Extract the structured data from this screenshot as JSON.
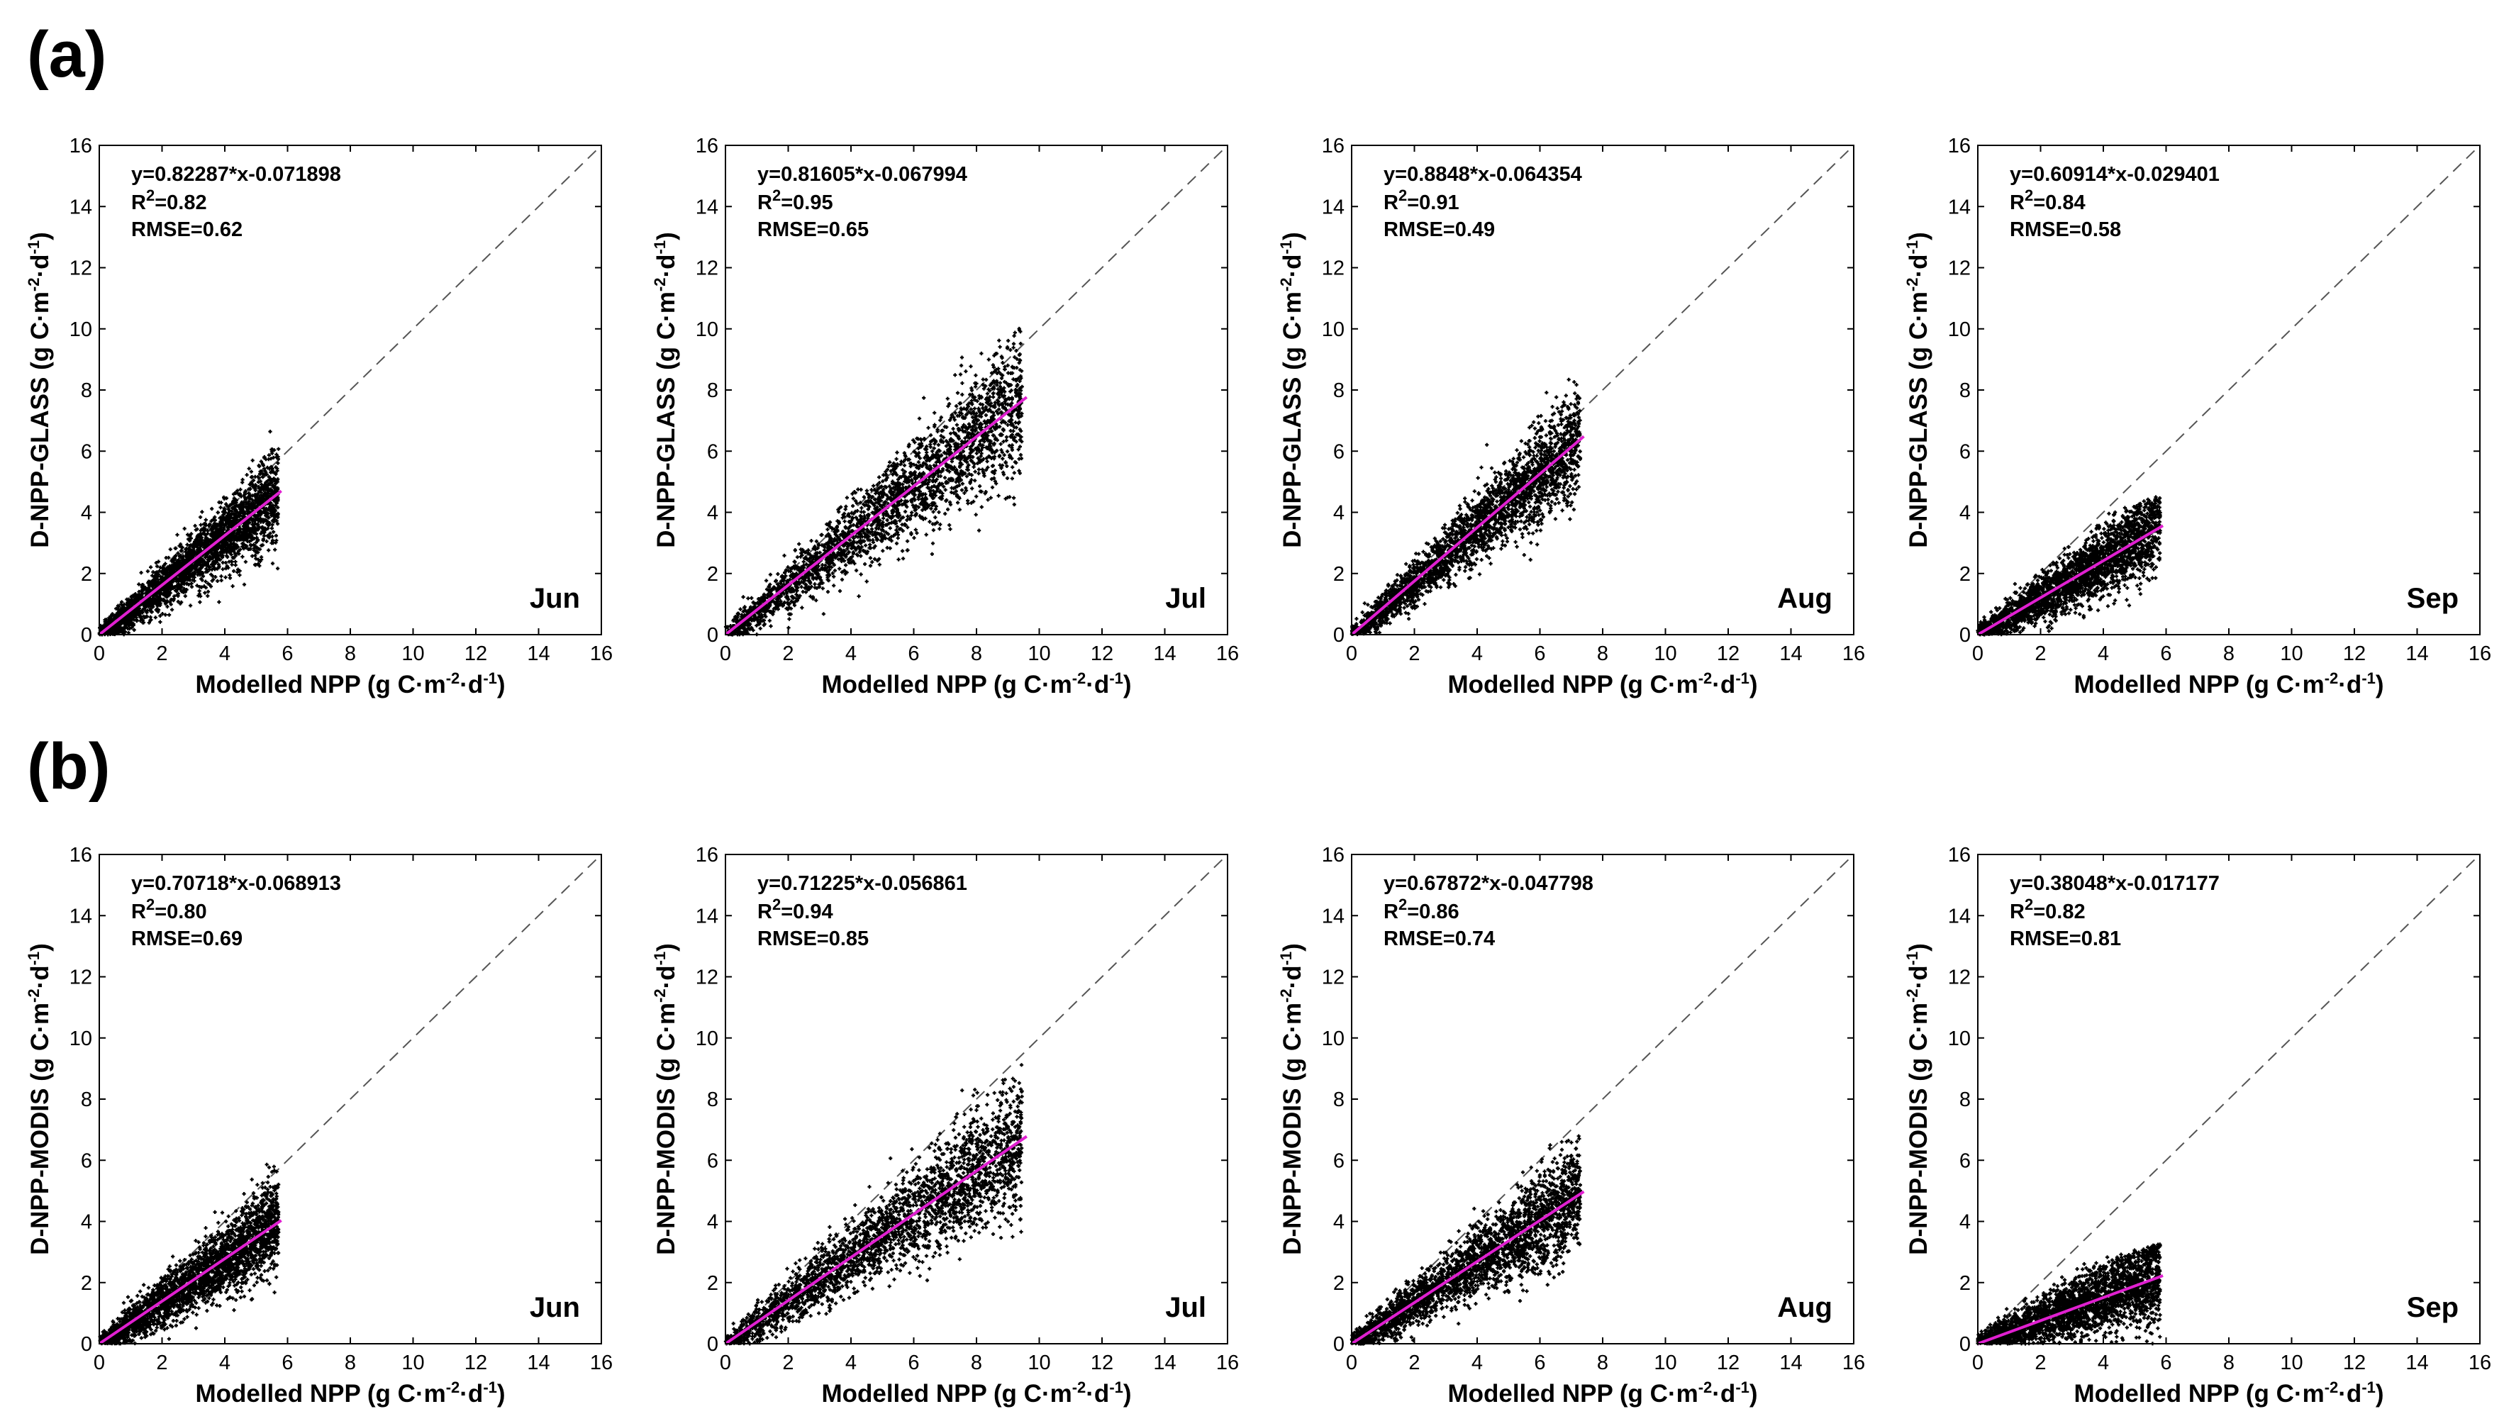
{
  "figure": {
    "panel_labels": [
      "(a)",
      "(b)"
    ],
    "xlabel_main": "Modelled NPP (g C·m",
    "xlabel_exp1": "-2",
    "xlabel_mid": "·d",
    "xlabel_exp2": "-1",
    "xlabel_end": ")",
    "unit_main": "(g C·m",
    "unit_exp1": "-2",
    "unit_mid": "·d",
    "unit_exp2": "-1",
    "unit_end": ")",
    "r2_prefix": "R",
    "r2_exp": "2",
    "colors": {
      "points": "#000000",
      "fit_line": "#e020d0",
      "identity_line": "#555555"
    }
  },
  "chart_data": [
    {
      "type": "scatter",
      "row": 0,
      "col": 0,
      "month": "Jun",
      "ylabel": "D-NPP-GLASS",
      "xlim": [
        0,
        16
      ],
      "ylim": [
        0,
        16
      ],
      "x_ticks": [
        0,
        2,
        4,
        6,
        8,
        10,
        12,
        14,
        16
      ],
      "y_ticks": [
        0,
        2,
        4,
        6,
        8,
        10,
        12,
        14,
        16
      ],
      "equation": "y=0.82287*x-0.071898",
      "r2_value": "=0.82",
      "rmse": "RMSE=0.62",
      "fit": {
        "slope": 0.82287,
        "intercept": -0.071898
      },
      "x_max": 5.8,
      "y_max": 8.1
    },
    {
      "type": "scatter",
      "row": 0,
      "col": 1,
      "month": "Jul",
      "ylabel": "D-NPP-GLASS",
      "xlim": [
        0,
        16
      ],
      "ylim": [
        0,
        16
      ],
      "x_ticks": [
        0,
        2,
        4,
        6,
        8,
        10,
        12,
        14,
        16
      ],
      "y_ticks": [
        0,
        2,
        4,
        6,
        8,
        10,
        12,
        14,
        16
      ],
      "equation": "y=0.81605*x-0.067994",
      "r2_value": "=0.95",
      "rmse": "RMSE=0.65",
      "fit": {
        "slope": 0.81605,
        "intercept": -0.067994
      },
      "x_max": 9.6,
      "y_max": 10.2
    },
    {
      "type": "scatter",
      "row": 0,
      "col": 2,
      "month": "Aug",
      "ylabel": "D-NPP-GLASS",
      "xlim": [
        0,
        16
      ],
      "ylim": [
        0,
        16
      ],
      "x_ticks": [
        0,
        2,
        4,
        6,
        8,
        10,
        12,
        14,
        16
      ],
      "y_ticks": [
        0,
        2,
        4,
        6,
        8,
        10,
        12,
        14,
        16
      ],
      "equation": "y=0.8848*x-0.064354",
      "r2_value": "=0.91",
      "rmse": "RMSE=0.49",
      "fit": {
        "slope": 0.8848,
        "intercept": -0.064354
      },
      "x_max": 7.4,
      "y_max": 8.6
    },
    {
      "type": "scatter",
      "row": 0,
      "col": 3,
      "month": "Sep",
      "ylabel": "D-NPP-GLASS",
      "xlim": [
        0,
        16
      ],
      "ylim": [
        0,
        16
      ],
      "x_ticks": [
        0,
        2,
        4,
        6,
        8,
        10,
        12,
        14,
        16
      ],
      "y_ticks": [
        0,
        2,
        4,
        6,
        8,
        10,
        12,
        14,
        16
      ],
      "equation": "y=0.60914*x-0.029401",
      "r2_value": "=0.84",
      "rmse": "RMSE=0.58",
      "fit": {
        "slope": 0.60914,
        "intercept": -0.029401
      },
      "x_max": 5.9,
      "y_max": 4.6
    },
    {
      "type": "scatter",
      "row": 1,
      "col": 0,
      "month": "Jun",
      "ylabel": "D-NPP-MODIS",
      "xlim": [
        0,
        16
      ],
      "ylim": [
        0,
        16
      ],
      "x_ticks": [
        0,
        2,
        4,
        6,
        8,
        10,
        12,
        14,
        16
      ],
      "y_ticks": [
        0,
        2,
        4,
        6,
        8,
        10,
        12,
        14,
        16
      ],
      "equation": "y=0.70718*x-0.068913",
      "r2_value": "=0.80",
      "rmse": "RMSE=0.69",
      "fit": {
        "slope": 0.70718,
        "intercept": -0.068913
      },
      "x_max": 5.8,
      "y_max": 7.4
    },
    {
      "type": "scatter",
      "row": 1,
      "col": 1,
      "month": "Jul",
      "ylabel": "D-NPP-MODIS",
      "xlim": [
        0,
        16
      ],
      "ylim": [
        0,
        16
      ],
      "x_ticks": [
        0,
        2,
        4,
        6,
        8,
        10,
        12,
        14,
        16
      ],
      "y_ticks": [
        0,
        2,
        4,
        6,
        8,
        10,
        12,
        14,
        16
      ],
      "equation": "y=0.71225*x-0.056861",
      "r2_value": "=0.94",
      "rmse": "RMSE=0.85",
      "fit": {
        "slope": 0.71225,
        "intercept": -0.056861
      },
      "x_max": 9.6,
      "y_max": 9.2
    },
    {
      "type": "scatter",
      "row": 1,
      "col": 2,
      "month": "Aug",
      "ylabel": "D-NPP-MODIS",
      "xlim": [
        0,
        16
      ],
      "ylim": [
        0,
        16
      ],
      "x_ticks": [
        0,
        2,
        4,
        6,
        8,
        10,
        12,
        14,
        16
      ],
      "y_ticks": [
        0,
        2,
        4,
        6,
        8,
        10,
        12,
        14,
        16
      ],
      "equation": "y=0.67872*x-0.047798",
      "r2_value": "=0.86",
      "rmse": "RMSE=0.74",
      "fit": {
        "slope": 0.67872,
        "intercept": -0.047798
      },
      "x_max": 7.4,
      "y_max": 7.0
    },
    {
      "type": "scatter",
      "row": 1,
      "col": 3,
      "month": "Sep",
      "ylabel": "D-NPP-MODIS",
      "xlim": [
        0,
        16
      ],
      "ylim": [
        0,
        16
      ],
      "x_ticks": [
        0,
        2,
        4,
        6,
        8,
        10,
        12,
        14,
        16
      ],
      "y_ticks": [
        0,
        2,
        4,
        6,
        8,
        10,
        12,
        14,
        16
      ],
      "equation": "y=0.38048*x-0.017177",
      "r2_value": "=0.82",
      "rmse": "RMSE=0.81",
      "fit": {
        "slope": 0.38048,
        "intercept": -0.017177
      },
      "x_max": 5.9,
      "y_max": 3.3
    }
  ]
}
